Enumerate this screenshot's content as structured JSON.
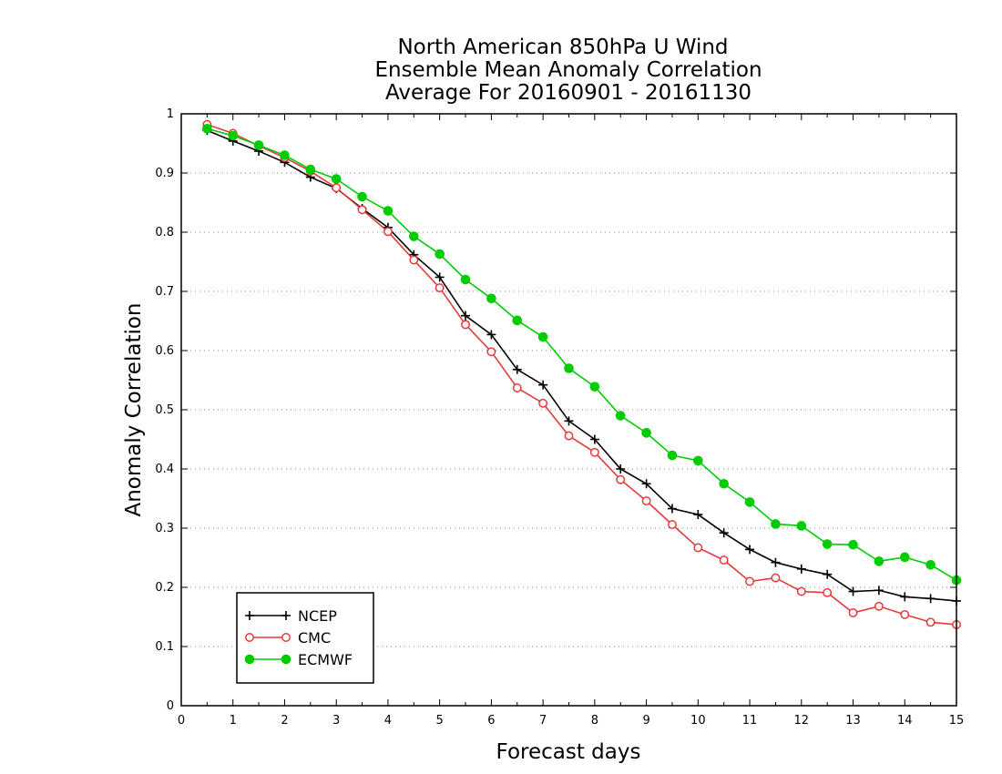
{
  "chart_data": {
    "type": "line",
    "title": [
      "North American 850hPa U Wind",
      "Ensemble Mean Anomaly Correlation",
      "Average For 20160901 - 20161130"
    ],
    "xlabel": "Forecast days",
    "ylabel": "Anomaly Correlation",
    "xlim": [
      0,
      15
    ],
    "ylim": [
      0,
      1
    ],
    "xticks": [
      "0",
      "1",
      "2",
      "3",
      "4",
      "5",
      "6",
      "7",
      "8",
      "9",
      "10",
      "11",
      "12",
      "13",
      "14",
      "15"
    ],
    "yticks": [
      "0",
      "0.1",
      "0.2",
      "0.3",
      "0.4",
      "0.5",
      "0.6",
      "0.7",
      "0.8",
      "0.9",
      "1"
    ],
    "grid": "horizontal dotted",
    "legend_position": "bottom-left",
    "x": [
      0.5,
      1,
      1.5,
      2,
      2.5,
      3,
      3.5,
      4,
      4.5,
      5,
      5.5,
      6,
      6.5,
      7,
      7.5,
      8,
      8.5,
      9,
      9.5,
      10,
      10.5,
      11,
      11.5,
      12,
      12.5,
      13,
      13.5,
      14,
      14.5,
      15
    ],
    "series": [
      {
        "name": "NCEP",
        "color": "#000000",
        "marker": "plus",
        "values": [
          0.972,
          0.954,
          0.937,
          0.918,
          0.893,
          0.874,
          0.84,
          0.808,
          0.762,
          0.724,
          0.659,
          0.627,
          0.568,
          0.542,
          0.481,
          0.45,
          0.4,
          0.375,
          0.333,
          0.323,
          0.292,
          0.264,
          0.242,
          0.231,
          0.222,
          0.193,
          0.195,
          0.184,
          0.181,
          0.177
        ]
      },
      {
        "name": "CMC",
        "color": "#e23b3b",
        "marker": "open-circle",
        "values": [
          0.982,
          0.967,
          0.946,
          0.926,
          0.903,
          0.875,
          0.838,
          0.801,
          0.753,
          0.706,
          0.644,
          0.598,
          0.537,
          0.511,
          0.456,
          0.428,
          0.382,
          0.346,
          0.306,
          0.267,
          0.246,
          0.21,
          0.216,
          0.193,
          0.191,
          0.157,
          0.168,
          0.154,
          0.141,
          0.137
        ]
      },
      {
        "name": "ECMWF",
        "color": "#00cc00",
        "marker": "filled-circle",
        "values": [
          0.975,
          0.963,
          0.947,
          0.93,
          0.906,
          0.89,
          0.86,
          0.836,
          0.793,
          0.763,
          0.72,
          0.688,
          0.651,
          0.623,
          0.57,
          0.539,
          0.49,
          0.461,
          0.423,
          0.414,
          0.375,
          0.344,
          0.307,
          0.304,
          0.273,
          0.272,
          0.244,
          0.251,
          0.238,
          0.212
        ]
      }
    ]
  }
}
